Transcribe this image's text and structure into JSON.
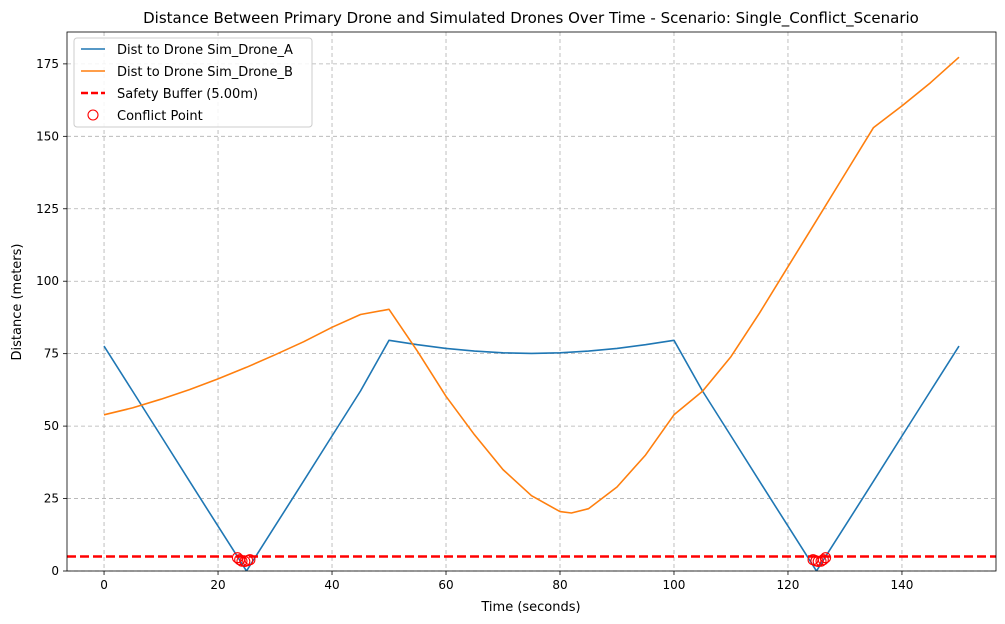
{
  "chart_data": {
    "type": "line",
    "title": "Distance Between Primary Drone and Simulated Drones Over Time - Scenario: Single_Conflict_Scenario",
    "xlabel": "Time (seconds)",
    "ylabel": "Distance (meters)",
    "xlim": [
      -6.5,
      156.5
    ],
    "ylim": [
      0,
      186
    ],
    "xticks": [
      0,
      20,
      40,
      60,
      80,
      100,
      120,
      140
    ],
    "yticks": [
      0,
      25,
      50,
      75,
      100,
      125,
      150,
      175
    ],
    "grid": true,
    "legend_position": "top-left",
    "series": [
      {
        "name": "Dist to Drone Sim_Drone_A",
        "color": "#1f77b4",
        "x": [
          0,
          5,
          10,
          15,
          20,
          23.5,
          25,
          26.5,
          30,
          35,
          40,
          45,
          50,
          55,
          60,
          65,
          70,
          75,
          80,
          85,
          90,
          95,
          100,
          105,
          110,
          115,
          120,
          123.5,
          125,
          126.5,
          130,
          135,
          140,
          145,
          150
        ],
        "y": [
          77.6,
          62.1,
          46.6,
          31.0,
          15.5,
          4.7,
          0,
          4.7,
          15.5,
          31.0,
          46.6,
          62.1,
          79.6,
          78.1,
          76.8,
          75.9,
          75.3,
          75.1,
          75.3,
          75.9,
          76.8,
          78.1,
          79.6,
          62.1,
          46.6,
          31.0,
          15.5,
          4.7,
          0,
          4.7,
          15.5,
          31.0,
          46.6,
          62.1,
          77.6
        ]
      },
      {
        "name": "Dist to Drone Sim_Drone_B",
        "color": "#ff7f0e",
        "x": [
          0,
          5,
          10,
          15,
          20,
          25,
          30,
          35,
          40,
          45,
          50,
          55,
          60,
          65,
          70,
          75,
          80,
          82,
          85,
          90,
          95,
          100,
          105,
          110,
          115,
          120,
          125,
          130,
          135,
          140,
          145,
          150
        ],
        "y": [
          53.9,
          56.3,
          59.3,
          62.6,
          66.3,
          70.3,
          74.6,
          79.1,
          84.1,
          88.5,
          90.3,
          75.8,
          60.3,
          47.0,
          35.0,
          26.0,
          20.5,
          20.0,
          21.5,
          29.0,
          40.0,
          53.9,
          62.0,
          74.0,
          89.0,
          105.0,
          121.0,
          137.0,
          153.0,
          160.5,
          168.5,
          177.3
        ]
      },
      {
        "name": "Safety Buffer (5.00m)",
        "color": "#ff0000",
        "style": "dashed",
        "x": [
          -6.5,
          156.5
        ],
        "y": [
          5.0,
          5.0
        ]
      },
      {
        "name": "Conflict Point",
        "color": "#ff0000",
        "marker": "hollow-circle",
        "x": [
          23.4,
          23.8,
          24.2,
          24.7,
          25.2,
          25.6,
          124.4,
          124.9,
          125.3,
          125.8,
          126.2,
          126.6
        ],
        "y": [
          4.6,
          3.9,
          3.4,
          3.3,
          3.6,
          3.9,
          3.9,
          3.5,
          3.3,
          3.4,
          3.9,
          4.6
        ]
      }
    ]
  }
}
